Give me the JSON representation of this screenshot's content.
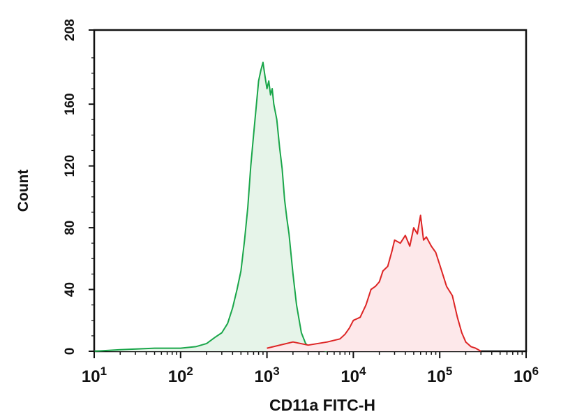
{
  "chart_data": {
    "type": "area",
    "xlabel": "CD11a FITC-H",
    "ylabel": "Count",
    "x_scale": "log",
    "xlim": [
      10,
      1000000
    ],
    "ylim": [
      0,
      208
    ],
    "x_ticks": [
      {
        "value": 10,
        "base": "10",
        "exp": "1"
      },
      {
        "value": 100,
        "base": "10",
        "exp": "2"
      },
      {
        "value": 1000,
        "base": "10",
        "exp": "3"
      },
      {
        "value": 10000,
        "base": "10",
        "exp": "4"
      },
      {
        "value": 100000,
        "base": "10",
        "exp": "5"
      },
      {
        "value": 1000000,
        "base": "10",
        "exp": "6"
      }
    ],
    "y_ticks": [
      "0",
      "40",
      "80",
      "120",
      "160",
      "208"
    ],
    "grid": false,
    "series": [
      {
        "color": "#1aa64a",
        "fill": "#e6f4e9",
        "x": [
          10,
          20,
          50,
          100,
          150,
          200,
          250,
          300,
          350,
          400,
          450,
          500,
          550,
          600,
          650,
          700,
          750,
          800,
          850,
          900,
          950,
          1000,
          1050,
          1100,
          1150,
          1200,
          1300,
          1400,
          1500,
          1600,
          1700,
          1800,
          2000,
          2200,
          2500,
          2800,
          3200,
          4000,
          5000
        ],
        "y": [
          0,
          1,
          2,
          2,
          3,
          5,
          9,
          12,
          18,
          28,
          40,
          52,
          72,
          93,
          120,
          140,
          158,
          175,
          182,
          187,
          178,
          170,
          175,
          166,
          170,
          160,
          150,
          132,
          118,
          98,
          86,
          76,
          50,
          30,
          12,
          5,
          2,
          1,
          0
        ]
      },
      {
        "color": "#dd2424",
        "fill": "#fde8ea",
        "x": [
          1000,
          2000,
          3000,
          5000,
          7000,
          8000,
          9000,
          10000,
          12000,
          14000,
          16000,
          18000,
          20000,
          22000,
          25000,
          28000,
          30000,
          35000,
          40000,
          45000,
          50000,
          55000,
          60000,
          65000,
          70000,
          80000,
          90000,
          100000,
          120000,
          140000,
          160000,
          180000,
          200000,
          230000,
          260000,
          300000
        ],
        "y": [
          2,
          6,
          4,
          6,
          8,
          11,
          15,
          20,
          22,
          30,
          40,
          42,
          45,
          52,
          55,
          65,
          72,
          70,
          75,
          68,
          80,
          76,
          88,
          72,
          74,
          68,
          64,
          56,
          42,
          36,
          22,
          12,
          6,
          3,
          2,
          0
        ]
      }
    ]
  }
}
